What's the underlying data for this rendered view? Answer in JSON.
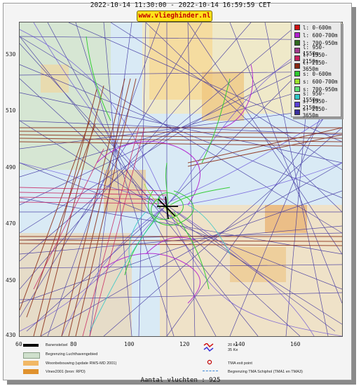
{
  "title": "2022-10-14 11:30:00 - 2022-10-14 16:59:59 CET",
  "site": "www.vlieghinder.nl",
  "axis": {
    "y_ticks": [
      "530",
      "510",
      "490",
      "470",
      "450",
      "430"
    ],
    "x_ticks": [
      "60",
      "80",
      "100",
      "120",
      "140",
      "160"
    ]
  },
  "legend": [
    {
      "label": "l: 0-600m",
      "color": "#d11212"
    },
    {
      "label": "l: 600-700m",
      "color": "#b21fd0"
    },
    {
      "label": "l: 700-950m",
      "color": "#2f6b1e"
    },
    {
      "label": "l: 950-1550m",
      "color": "#a23a8e"
    },
    {
      "label": "l: 1550-2150m",
      "color": "#c81e5c"
    },
    {
      "label": "l: 2150-3650m",
      "color": "#8a2a12"
    },
    {
      "label": "s: 0-600m",
      "color": "#2ecb2e"
    },
    {
      "label": "s: 600-700m",
      "color": "#9be22a"
    },
    {
      "label": "s: 700-950m",
      "color": "#5fe07a"
    },
    {
      "label": "s: 950-1550m",
      "color": "#2ec7c7"
    },
    {
      "label": "s: 1550-2150m",
      "color": "#5a3fd6"
    },
    {
      "label": "s: 2150-3650m",
      "color": "#3a2f9e"
    }
  ],
  "key": {
    "runway": "Banenstelsel",
    "airport_boundary": "Begrenzing Luchthavengebied",
    "housing": "Woonbebouwing (update RWS-MD 2001)",
    "vinex": "Vinex2001 (bron: RPD)",
    "noise_20": "20 Ke",
    "noise_35": "35 Ke",
    "tma_exit": "TMA exit point",
    "tma_boundary": "Begrenzing TMA Schiphol  (TMA1 en TMA3)"
  },
  "footer": "Aantal vluchten : 925"
}
